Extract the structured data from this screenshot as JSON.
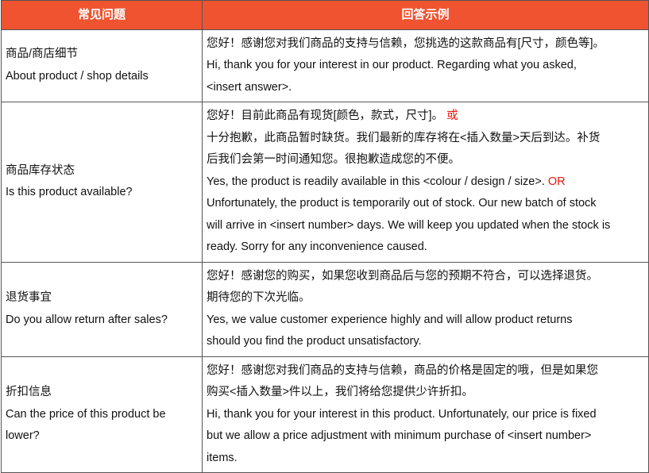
{
  "table": {
    "header": [
      "常见问题",
      "回答示例"
    ],
    "header_color": "#ef5330",
    "emphasis_color": "#e8160c",
    "rows": [
      {
        "question": [
          "商品/商店细节",
          "About product / shop details"
        ],
        "answer": [
          {
            "text": "您好！感谢您对我们商品的支持与信赖，您挑选的这款商品有[尺寸，颜色等]。"
          },
          {
            "text": "Hi, thank you for your interest in our product. Regarding what you asked,"
          },
          {
            "text": "<insert answer>."
          }
        ]
      },
      {
        "question": [
          "商品库存状态",
          "Is this product available?"
        ],
        "answer": [
          {
            "text": "您好！目前此商品有现货[颜色，款式，尺寸]。",
            "emphasis": " 或"
          },
          {
            "text": "十分抱歉，此商品暂时缺货。我们最新的库存将在<插入数量>天后到达。补货"
          },
          {
            "text": "后我们会第一时间通知您。很抱歉造成您的不便。"
          },
          {
            "text": "Yes, the product is readily available in this <colour / design / size>.",
            "emphasis": " OR"
          },
          {
            "text": "Unfortunately, the product is temporarily out of stock. Our new batch of stock"
          },
          {
            "text": "will arrive in <insert number> days. We will keep you updated when the stock is"
          },
          {
            "text": "ready. Sorry for any inconvenience caused."
          }
        ]
      },
      {
        "question": [
          "退货事宜",
          "Do you allow return after sales?"
        ],
        "answer": [
          {
            "text": "您好！感谢您的购买，如果您收到商品后与您的预期不符合，可以选择退货。"
          },
          {
            "text": "期待您的下次光临。"
          },
          {
            "text": "Yes, we value customer experience highly and will allow product returns"
          },
          {
            "text": "should you find the product unsatisfactory."
          }
        ]
      },
      {
        "question": [
          "折扣信息",
          "Can the price of this product be",
          "lower?"
        ],
        "answer": [
          {
            "text": "您好！感谢您对我们商品的支持与信赖，商品的价格是固定的哦，但是如果您"
          },
          {
            "text": "购买<插入数量>件以上，我们将给您提供少许折扣。"
          },
          {
            "text": "Hi, thank you for your interest in this product. Unfortunately, our price is fixed"
          },
          {
            "text": "but we allow a price adjustment with minimum purchase of <insert number>"
          },
          {
            "text": "items."
          }
        ]
      }
    ]
  }
}
